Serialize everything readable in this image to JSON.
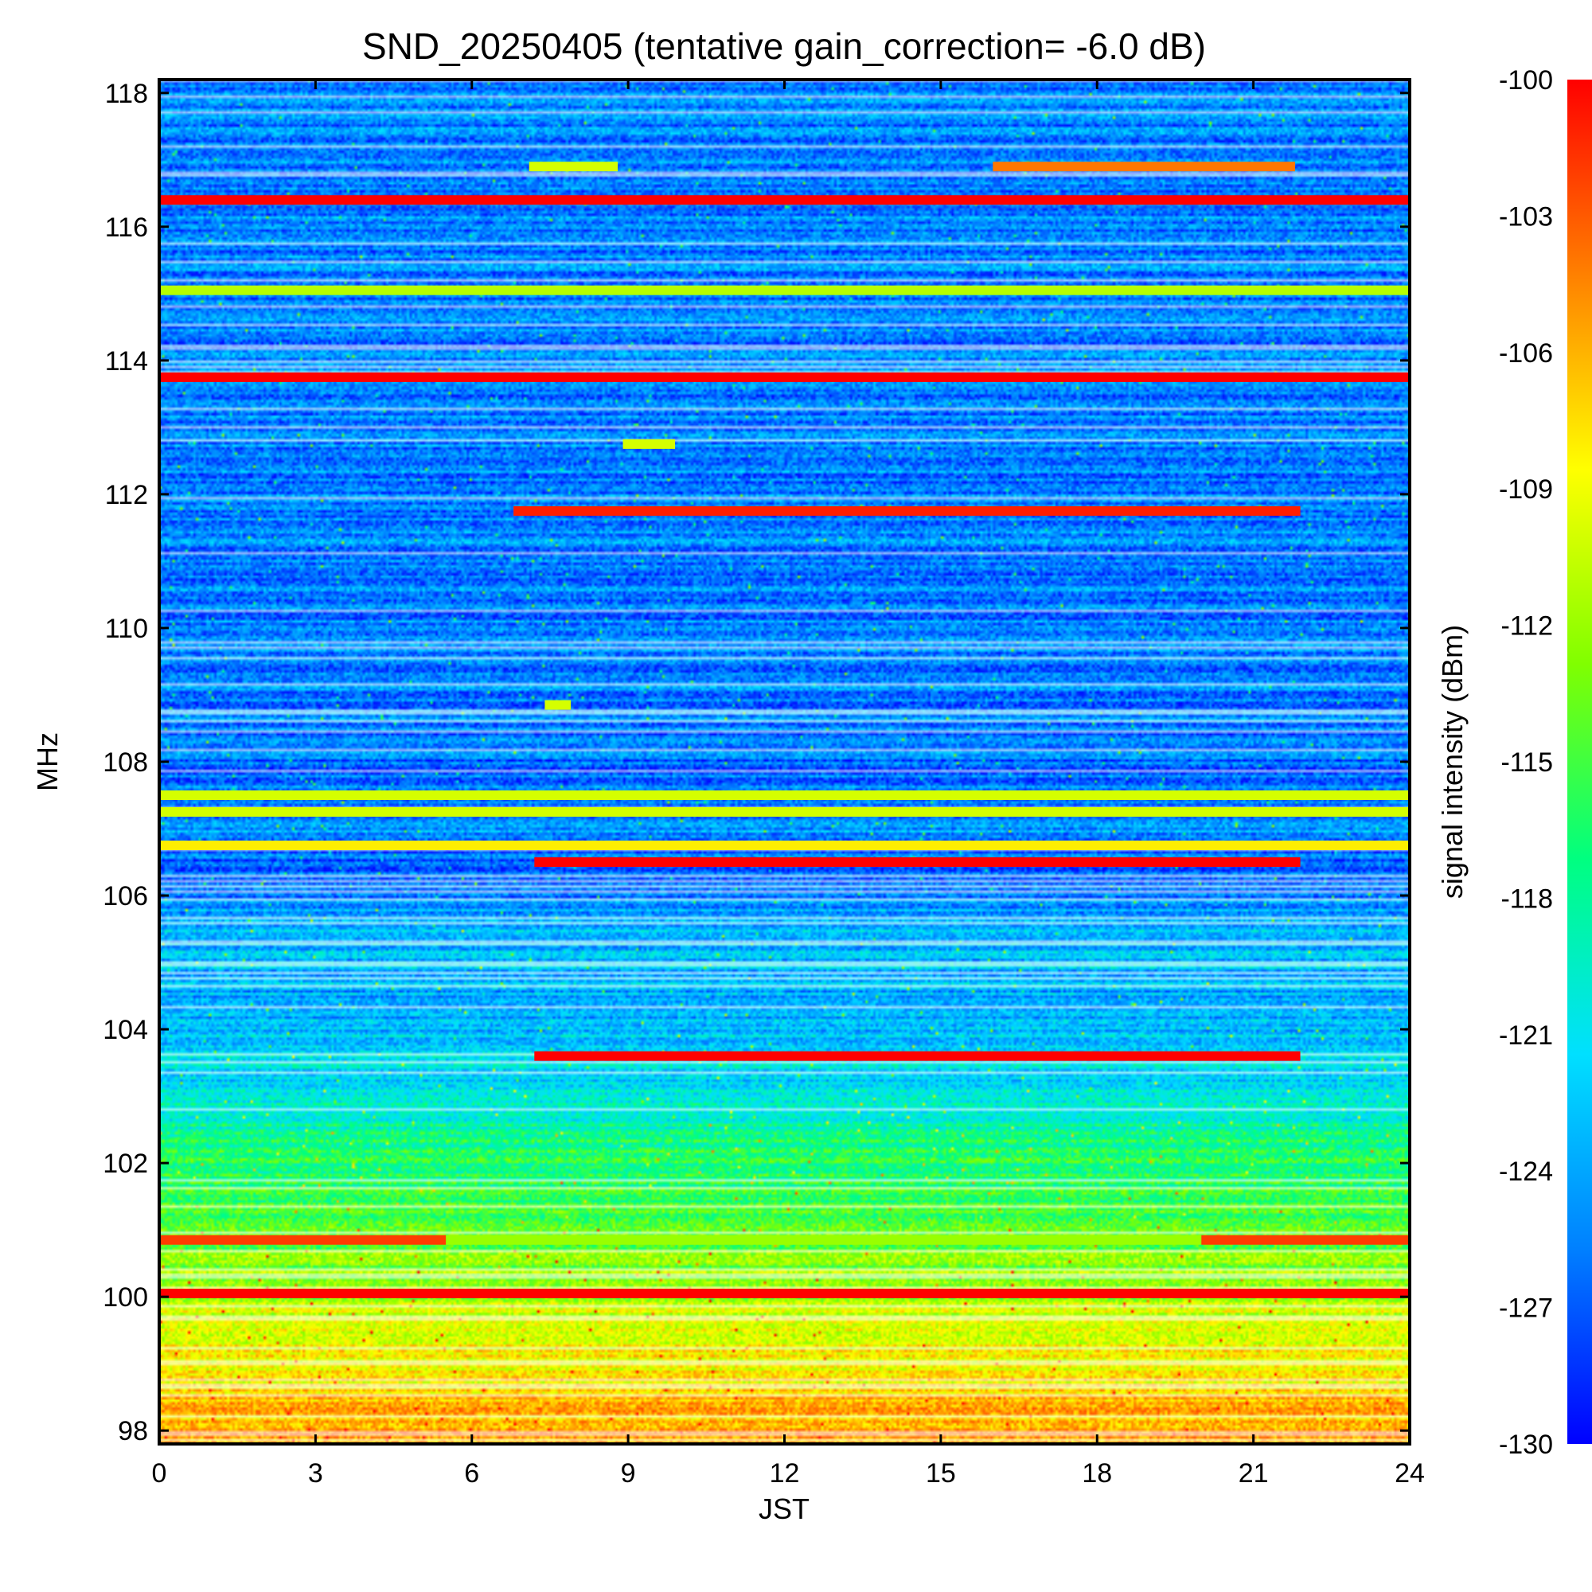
{
  "chart_data": {
    "type": "heatmap",
    "title": "SND_20250405 (tentative gain_correction= -6.0 dB)",
    "xlabel": "JST",
    "ylabel": "MHz",
    "colorbar_label": "signal intensity (dBm)",
    "xlim": [
      0,
      24
    ],
    "ylim": [
      97.8,
      118.2
    ],
    "clim": [
      -130,
      -100
    ],
    "x_ticks": [
      0,
      3,
      6,
      9,
      12,
      15,
      18,
      21,
      24
    ],
    "y_ticks": [
      98,
      100,
      102,
      104,
      106,
      108,
      110,
      112,
      114,
      116,
      118
    ],
    "colorbar_ticks": [
      -100,
      -103,
      -106,
      -109,
      -112,
      -115,
      -118,
      -121,
      -124,
      -127,
      -130
    ],
    "colormap": [
      "#0000ff",
      "#0080ff",
      "#00e0ff",
      "#00ff80",
      "#80ff00",
      "#ffff00",
      "#ff8000",
      "#ff0000"
    ],
    "background_profile": [
      {
        "freq": 97.8,
        "dbm": -105.0
      },
      {
        "freq": 98.5,
        "dbm": -107.0
      },
      {
        "freq": 99.3,
        "dbm": -109.5
      },
      {
        "freq": 100.0,
        "dbm": -111.5
      },
      {
        "freq": 101.5,
        "dbm": -115.5
      },
      {
        "freq": 102.5,
        "dbm": -118.0
      },
      {
        "freq": 103.3,
        "dbm": -121.5
      },
      {
        "freq": 104.5,
        "dbm": -123.5
      },
      {
        "freq": 105.5,
        "dbm": -122.5
      },
      {
        "freq": 106.4,
        "dbm": -127.5
      },
      {
        "freq": 107.0,
        "dbm": -124.0
      },
      {
        "freq": 107.9,
        "dbm": -126.5
      },
      {
        "freq": 108.2,
        "dbm": -125.5
      },
      {
        "freq": 118.2,
        "dbm": -125.5
      }
    ],
    "signals": [
      {
        "freq": 116.4,
        "dbm": -100.0,
        "t_start": 0.0,
        "t_end": 24.0
      },
      {
        "freq": 115.05,
        "dbm": -111.0,
        "t_start": 0.0,
        "t_end": 24.0
      },
      {
        "freq": 113.75,
        "dbm": -100.0,
        "t_start": 0.0,
        "t_end": 24.0
      },
      {
        "freq": 111.75,
        "dbm": -101.0,
        "t_start": 6.8,
        "t_end": 21.9
      },
      {
        "freq": 116.9,
        "dbm": -104.0,
        "t_start": 16.0,
        "t_end": 21.8
      },
      {
        "freq": 116.9,
        "dbm": -110.0,
        "t_start": 7.1,
        "t_end": 8.8
      },
      {
        "freq": 108.85,
        "dbm": -110.0,
        "t_start": 7.4,
        "t_end": 7.9
      },
      {
        "freq": 112.75,
        "dbm": -110.0,
        "t_start": 8.9,
        "t_end": 9.9
      },
      {
        "freq": 107.5,
        "dbm": -110.0,
        "t_start": 0.0,
        "t_end": 24.0
      },
      {
        "freq": 107.25,
        "dbm": -110.0,
        "t_start": 0.0,
        "t_end": 24.0
      },
      {
        "freq": 106.75,
        "dbm": -108.0,
        "t_start": 0.0,
        "t_end": 24.0
      },
      {
        "freq": 106.5,
        "dbm": -100.0,
        "t_start": 7.2,
        "t_end": 21.9
      },
      {
        "freq": 103.6,
        "dbm": -100.0,
        "t_start": 7.2,
        "t_end": 21.9
      },
      {
        "freq": 100.85,
        "dbm": -102.0,
        "t_start": 0.0,
        "t_end": 5.5
      },
      {
        "freq": 100.85,
        "dbm": -102.0,
        "t_start": 20.0,
        "t_end": 24.0
      },
      {
        "freq": 100.85,
        "dbm": -112.0,
        "t_start": 5.5,
        "t_end": 20.0
      },
      {
        "freq": 100.05,
        "dbm": -100.0,
        "t_start": 0.0,
        "t_end": 24.0
      }
    ]
  }
}
